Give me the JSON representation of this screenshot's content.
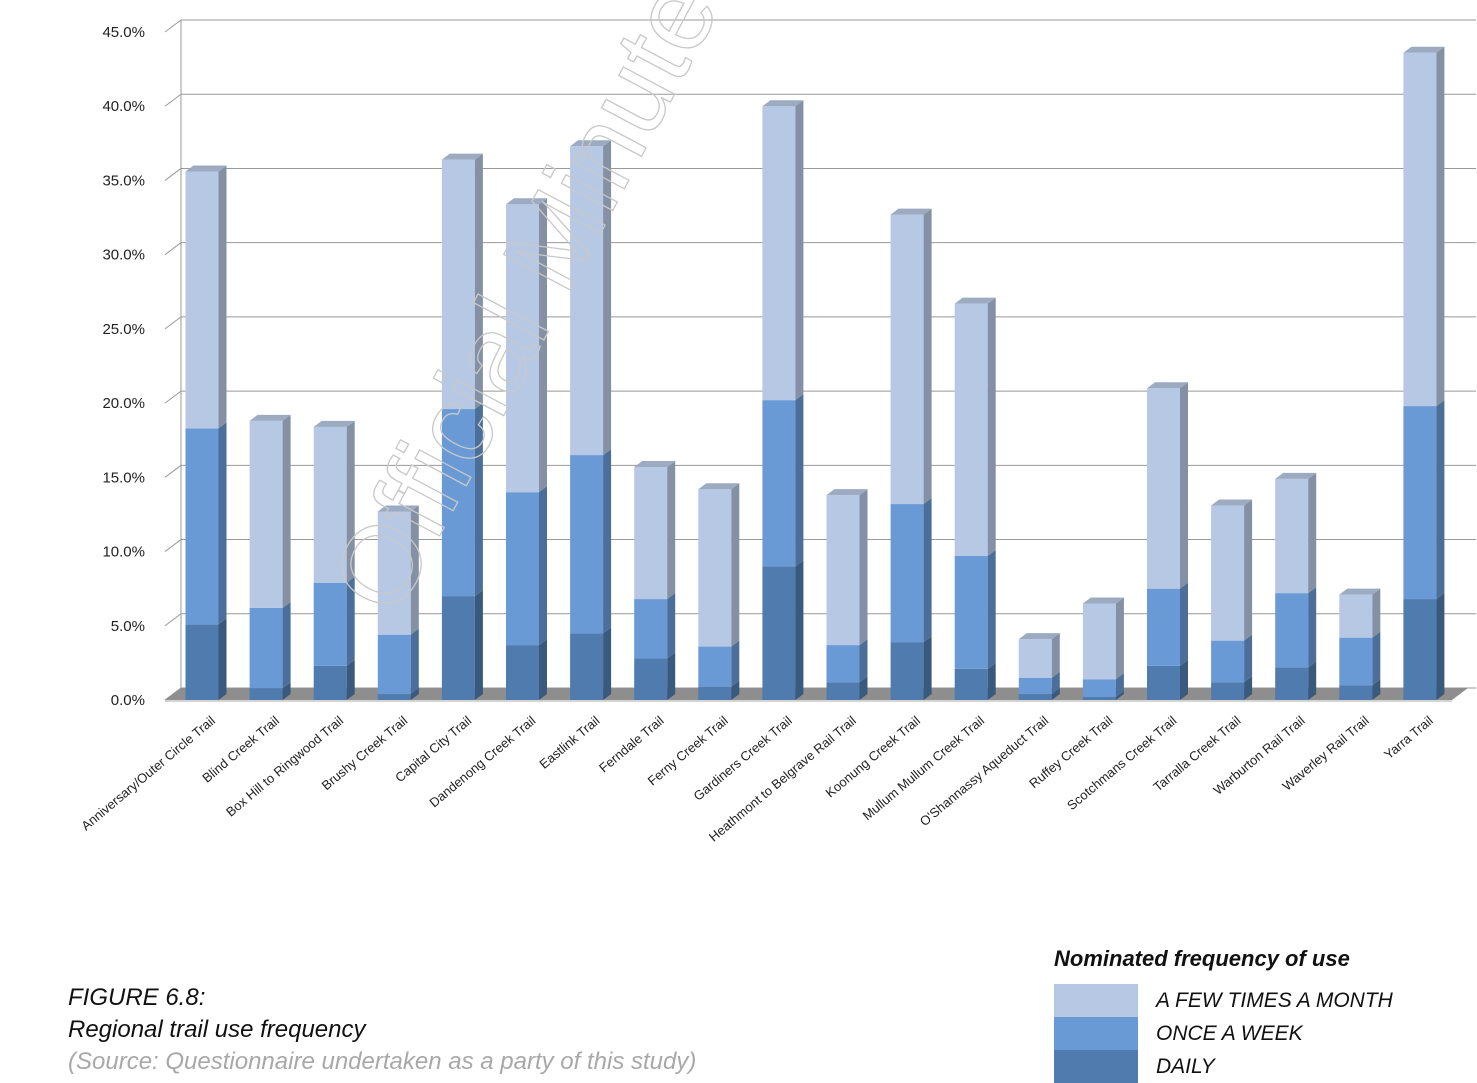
{
  "watermark": "Official Minutes of Kno",
  "chart_data": {
    "type": "bar",
    "stacked": true,
    "ylim": [
      0,
      45
    ],
    "y_ticks": [
      "0.0%",
      "5.0%",
      "10.0%",
      "15.0%",
      "20.0%",
      "25.0%",
      "30.0%",
      "35.0%",
      "40.0%",
      "45.0%"
    ],
    "grid": true,
    "categories": [
      "Anniversary/Outer Circle Trail",
      "Blind Creek Trail",
      "Box Hill to Ringwood Trail",
      "Brushy Creek Trail",
      "Capital City Trail",
      "Dandenong Creek Trail",
      "Eastlink Trail",
      "Ferndale Trail",
      "Ferny Creek Trail",
      "Gardiners Creek Trail",
      "Heathmont to Belgrave Rail Trail",
      "Koonung Creek Trail",
      "Mullum Mullum Creek Trail",
      "O'Shannassy Aqueduct Trail",
      "Ruffey Creek Trail",
      "Scotchmans Creek Trail",
      "Tarralla Creek Trail",
      "Warburton Rail Trail",
      "Waverley Rail Trail",
      "Yarra Trail"
    ],
    "series": [
      {
        "name": "DAILY",
        "color": "#4f7bae",
        "values": [
          5.1,
          0.8,
          2.3,
          0.4,
          7.0,
          3.7,
          4.5,
          2.8,
          0.9,
          9.0,
          1.2,
          3.9,
          2.1,
          0.4,
          0.2,
          2.3,
          1.2,
          2.2,
          1.0,
          6.8
        ]
      },
      {
        "name": "ONCE A WEEK",
        "color": "#6a9ad6",
        "values": [
          13.2,
          5.4,
          5.6,
          4.0,
          12.6,
          10.3,
          12.0,
          4.0,
          2.7,
          11.2,
          2.5,
          9.3,
          7.6,
          1.1,
          1.2,
          5.2,
          2.8,
          5.0,
          3.2,
          13.0
        ]
      },
      {
        "name": "A FEW TIMES A MONTH",
        "color": "#b7c8e4",
        "values": [
          17.3,
          12.6,
          10.5,
          8.3,
          16.8,
          19.4,
          20.8,
          8.9,
          10.6,
          19.8,
          10.1,
          19.5,
          17.0,
          2.6,
          5.1,
          13.5,
          9.1,
          7.7,
          2.9,
          23.8
        ]
      }
    ]
  },
  "caption": {
    "figure": "FIGURE 6.8:",
    "title": "Regional trail use frequency",
    "source": "(Source: Questionnaire undertaken as a party of this study)"
  },
  "legend": {
    "title": "Nominated frequency of use",
    "items": [
      {
        "label": "A FEW TIMES A MONTH",
        "color": "#b7c8e4"
      },
      {
        "label": "ONCE A WEEK",
        "color": "#6a9ad6"
      },
      {
        "label": "DAILY",
        "color": "#4f7bae"
      }
    ]
  }
}
